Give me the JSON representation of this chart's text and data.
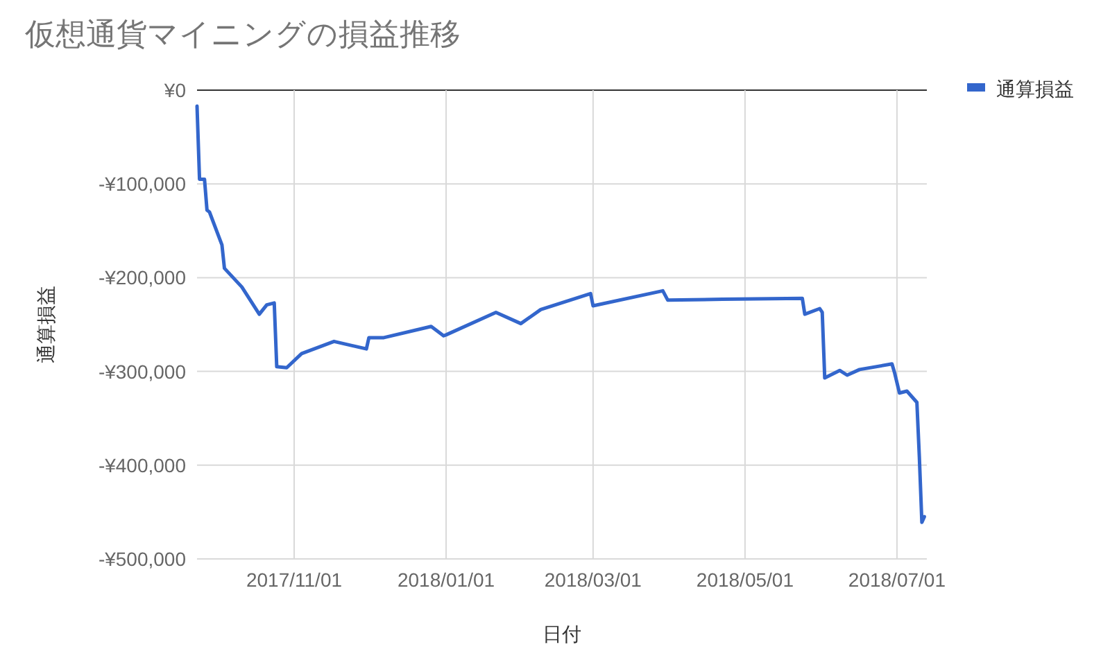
{
  "chart_data": {
    "type": "line",
    "title": "仮想通貨マイニングの損益推移",
    "xlabel": "日付",
    "ylabel": "通算損益",
    "x": [
      "2017-09-23",
      "2017-09-24",
      "2017-09-26",
      "2017-09-27",
      "2017-09-28",
      "2017-10-03",
      "2017-10-04",
      "2017-10-11",
      "2017-10-18",
      "2017-10-21",
      "2017-10-24",
      "2017-10-25",
      "2017-10-29",
      "2017-11-04",
      "2017-11-17",
      "2017-11-30",
      "2017-12-01",
      "2017-12-07",
      "2017-12-26",
      "2017-12-31",
      "2018-01-01",
      "2018-01-21",
      "2018-01-31",
      "2018-02-08",
      "2018-02-28",
      "2018-03-01",
      "2018-03-29",
      "2018-03-31",
      "2018-04-22",
      "2018-05-24",
      "2018-05-25",
      "2018-05-31",
      "2018-06-01",
      "2018-06-02",
      "2018-06-08",
      "2018-06-11",
      "2018-06-16",
      "2018-06-29",
      "2018-06-30",
      "2018-07-02",
      "2018-07-05",
      "2018-07-09",
      "2018-07-10",
      "2018-07-11",
      "2018-07-12"
    ],
    "series": [
      {
        "name": "通算損益",
        "color": "#3366cc",
        "values": [
          -17000,
          -95000,
          -95000,
          -128000,
          -130000,
          -165000,
          -190000,
          -210000,
          -239000,
          -229000,
          -227000,
          -295000,
          -296000,
          -281000,
          -268000,
          -276000,
          -264000,
          -264000,
          -252000,
          -262000,
          -261000,
          -237000,
          -249000,
          -234000,
          -217000,
          -230000,
          -214000,
          -224000,
          -223000,
          -222000,
          -239000,
          -233000,
          -237000,
          -307000,
          -299000,
          -304000,
          -298000,
          -292000,
          -301000,
          -323000,
          -321000,
          -333000,
          -392000,
          -461000,
          -455000
        ]
      }
    ],
    "xlim": [
      "2017-09-23",
      "2018-07-13"
    ],
    "xticks": [
      {
        "value": "2017-11-01",
        "label": "2017/11/01"
      },
      {
        "value": "2018-01-01",
        "label": "2018/01/01"
      },
      {
        "value": "2018-03-01",
        "label": "2018/03/01"
      },
      {
        "value": "2018-05-01",
        "label": "2018/05/01"
      },
      {
        "value": "2018-07-01",
        "label": "2018/07/01"
      }
    ],
    "ylim": [
      -500000,
      0
    ],
    "yticks": [
      {
        "value": -500000,
        "label": "-¥500,000"
      },
      {
        "value": -400000,
        "label": "-¥400,000"
      },
      {
        "value": -300000,
        "label": "-¥300,000"
      },
      {
        "value": -200000,
        "label": "-¥200,000"
      },
      {
        "value": -100000,
        "label": "-¥100,000"
      },
      {
        "value": 0,
        "label": "¥0"
      }
    ],
    "grid": true,
    "legend": "top right",
    "marker": "none",
    "line_style": "solid"
  }
}
